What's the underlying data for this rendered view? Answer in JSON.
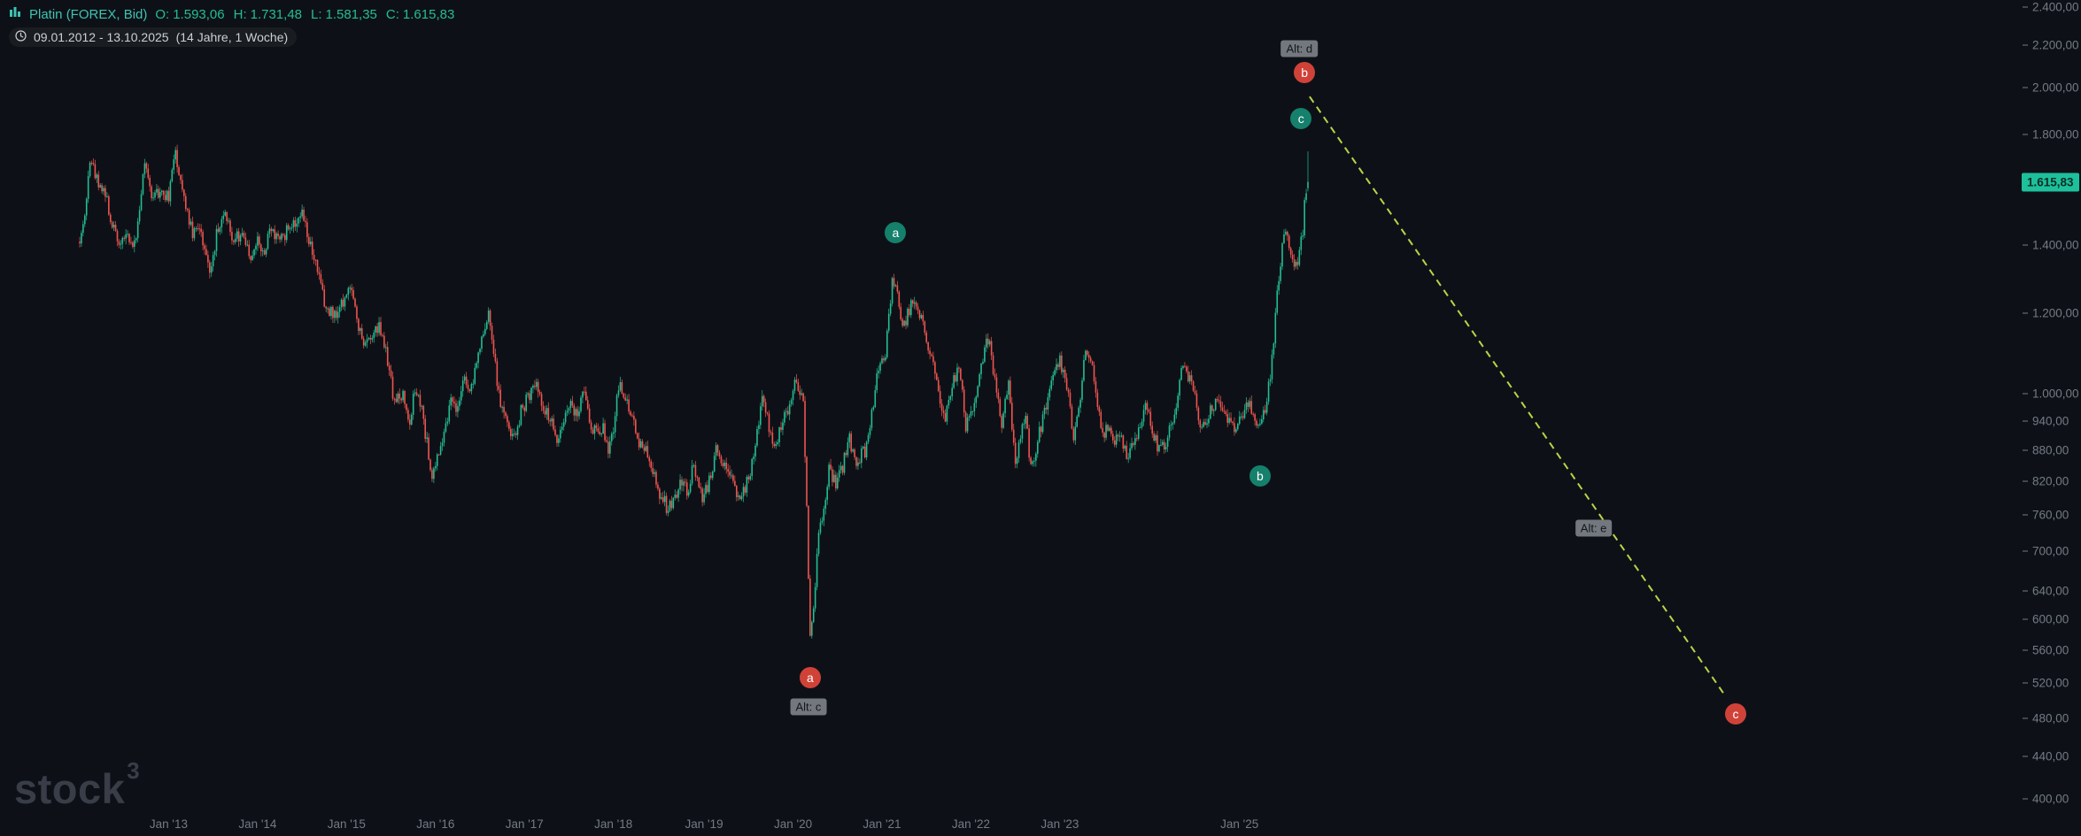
{
  "legend": {
    "instrument_label": "Platin (FOREX, Bid)",
    "ohlc": [
      {
        "k": "O:",
        "v": "1.593,06"
      },
      {
        "k": "H:",
        "v": "1.731,48"
      },
      {
        "k": "L:",
        "v": "1.581,35"
      },
      {
        "k": "C:",
        "v": "1.615,83"
      }
    ],
    "date_range": "09.01.2012 - 13.10.2025",
    "period_info": "(14 Jahre, 1 Woche)"
  },
  "watermark": {
    "text": "stock",
    "sup": "3"
  },
  "colors": {
    "background": "#0d1117",
    "up": "#24bd93",
    "down": "#f0544f",
    "axis_text": "#747a84",
    "projection_line": "#c6de4a",
    "marker_teal": "#15806b",
    "marker_red": "#d04238",
    "alt_label_bg": "#73777e",
    "price_tag_bg": "#1ec09c"
  },
  "markers": [
    {
      "type": "circle",
      "color": "teal",
      "text": "a",
      "week": 477,
      "price": 1440
    },
    {
      "type": "circle",
      "color": "red",
      "text": "b",
      "week": 716,
      "price": 2070
    },
    {
      "type": "circle",
      "color": "teal",
      "text": "c",
      "week": 714,
      "price": 1865
    },
    {
      "type": "label",
      "text": "Alt: d",
      "week": 713,
      "price": 2185
    },
    {
      "type": "circle",
      "color": "teal",
      "text": "b",
      "week": 690,
      "price": 830
    },
    {
      "type": "circle",
      "color": "red",
      "text": "a",
      "week": 427,
      "price": 526
    },
    {
      "type": "label",
      "text": "Alt: c",
      "week": 426,
      "price": 493
    },
    {
      "type": "label",
      "text": "Alt: e",
      "week": 885,
      "price": 738
    },
    {
      "type": "circle",
      "color": "red",
      "text": "c",
      "week": 968,
      "price": 485
    }
  ],
  "projection_line": {
    "from": {
      "week": 719,
      "price": 1960
    },
    "to": {
      "week": 962,
      "price": 505
    }
  },
  "chart_data": {
    "type": "candlestick",
    "instrument": "Platin (FOREX, Bid)",
    "timeframe_label": "1 Woche",
    "range_label": "09.01.2012 - 13.10.2025",
    "duration_label": "14 Jahre, 1 Woche",
    "scale": "logarithmic",
    "weeks_total": 719,
    "last_candle": {
      "open": 1593.06,
      "high": 1731.48,
      "low": 1581.35,
      "close": 1615.83
    },
    "current_price": 1615.83,
    "price_axis": {
      "ticks": [
        {
          "text": "2.400,00",
          "price": 2400
        },
        {
          "text": "2.200,00",
          "price": 2200
        },
        {
          "text": "2.000,00",
          "price": 2000
        },
        {
          "text": "1.800,00",
          "price": 1800
        },
        {
          "text": "1.400,00",
          "price": 1400
        },
        {
          "text": "1.200,00",
          "price": 1200
        },
        {
          "text": "1.000,00",
          "price": 1000
        },
        {
          "text": "940,00",
          "price": 940
        },
        {
          "text": "880,00",
          "price": 880
        },
        {
          "text": "820,00",
          "price": 820
        },
        {
          "text": "760,00",
          "price": 760
        },
        {
          "text": "700,00",
          "price": 700
        },
        {
          "text": "640,00",
          "price": 640
        },
        {
          "text": "600,00",
          "price": 600
        },
        {
          "text": "560,00",
          "price": 560
        },
        {
          "text": "520,00",
          "price": 520
        },
        {
          "text": "480,00",
          "price": 480
        },
        {
          "text": "440,00",
          "price": 440
        },
        {
          "text": "400,00",
          "price": 400
        }
      ],
      "current_tag": {
        "text": "1.615,83",
        "price": 1615.83
      }
    },
    "time_axis": {
      "ticks": [
        {
          "text": "Jan '13",
          "week": 52
        },
        {
          "text": "Jan '14",
          "week": 104
        },
        {
          "text": "Jan '15",
          "week": 156
        },
        {
          "text": "Jan '16",
          "week": 208
        },
        {
          "text": "Jan '17",
          "week": 260
        },
        {
          "text": "Jan '18",
          "week": 312
        },
        {
          "text": "Jan '19",
          "week": 365
        },
        {
          "text": "Jan '20",
          "week": 417
        },
        {
          "text": "Jan '21",
          "week": 469
        },
        {
          "text": "Jan '22",
          "week": 521
        },
        {
          "text": "Jan '23",
          "week": 573
        },
        {
          "text": "Jan '25",
          "week": 678
        }
      ]
    },
    "anchors": [
      [
        0,
        1420
      ],
      [
        3,
        1490
      ],
      [
        6,
        1710
      ],
      [
        10,
        1630
      ],
      [
        14,
        1590
      ],
      [
        19,
        1470
      ],
      [
        24,
        1400
      ],
      [
        28,
        1430
      ],
      [
        31,
        1390
      ],
      [
        34,
        1470
      ],
      [
        38,
        1690
      ],
      [
        43,
        1550
      ],
      [
        47,
        1590
      ],
      [
        52,
        1560
      ],
      [
        56,
        1730
      ],
      [
        60,
        1590
      ],
      [
        66,
        1430
      ],
      [
        70,
        1460
      ],
      [
        76,
        1320
      ],
      [
        80,
        1430
      ],
      [
        85,
        1520
      ],
      [
        90,
        1410
      ],
      [
        95,
        1440
      ],
      [
        99,
        1360
      ],
      [
        104,
        1410
      ],
      [
        108,
        1380
      ],
      [
        112,
        1450
      ],
      [
        118,
        1420
      ],
      [
        124,
        1470
      ],
      [
        130,
        1510
      ],
      [
        136,
        1380
      ],
      [
        143,
        1230
      ],
      [
        148,
        1200
      ],
      [
        152,
        1210
      ],
      [
        158,
        1280
      ],
      [
        162,
        1180
      ],
      [
        166,
        1110
      ],
      [
        171,
        1140
      ],
      [
        175,
        1160
      ],
      [
        180,
        1080
      ],
      [
        184,
        980
      ],
      [
        189,
        1000
      ],
      [
        193,
        940
      ],
      [
        196,
        1010
      ],
      [
        200,
        960
      ],
      [
        206,
        830
      ],
      [
        210,
        880
      ],
      [
        214,
        940
      ],
      [
        217,
        980
      ],
      [
        221,
        960
      ],
      [
        224,
        1040
      ],
      [
        228,
        1000
      ],
      [
        232,
        1080
      ],
      [
        239,
        1190
      ],
      [
        243,
        1060
      ],
      [
        246,
        970
      ],
      [
        250,
        930
      ],
      [
        254,
        900
      ],
      [
        258,
        960
      ],
      [
        263,
        1000
      ],
      [
        267,
        1030
      ],
      [
        271,
        960
      ],
      [
        275,
        950
      ],
      [
        278,
        900
      ],
      [
        282,
        930
      ],
      [
        286,
        980
      ],
      [
        291,
        950
      ],
      [
        295,
        1010
      ],
      [
        299,
        930
      ],
      [
        303,
        910
      ],
      [
        306,
        930
      ],
      [
        309,
        880
      ],
      [
        312,
        930
      ],
      [
        315,
        1020
      ],
      [
        319,
        990
      ],
      [
        323,
        960
      ],
      [
        327,
        900
      ],
      [
        331,
        880
      ],
      [
        335,
        840
      ],
      [
        339,
        800
      ],
      [
        344,
        770
      ],
      [
        348,
        790
      ],
      [
        351,
        830
      ],
      [
        355,
        800
      ],
      [
        359,
        850
      ],
      [
        364,
        790
      ],
      [
        368,
        820
      ],
      [
        372,
        880
      ],
      [
        376,
        850
      ],
      [
        380,
        830
      ],
      [
        385,
        790
      ],
      [
        389,
        810
      ],
      [
        393,
        850
      ],
      [
        397,
        930
      ],
      [
        399,
        990
      ],
      [
        402,
        950
      ],
      [
        405,
        880
      ],
      [
        407,
        890
      ],
      [
        410,
        930
      ],
      [
        414,
        970
      ],
      [
        418,
        1030
      ],
      [
        421,
        1010
      ],
      [
        423,
        980
      ],
      [
        425,
        770
      ],
      [
        427,
        580
      ],
      [
        429,
        620
      ],
      [
        432,
        730
      ],
      [
        435,
        770
      ],
      [
        438,
        840
      ],
      [
        442,
        820
      ],
      [
        446,
        850
      ],
      [
        450,
        900
      ],
      [
        454,
        860
      ],
      [
        459,
        880
      ],
      [
        463,
        960
      ],
      [
        467,
        1060
      ],
      [
        471,
        1100
      ],
      [
        475,
        1290
      ],
      [
        477,
        1270
      ],
      [
        481,
        1160
      ],
      [
        484,
        1200
      ],
      [
        488,
        1250
      ],
      [
        492,
        1180
      ],
      [
        496,
        1100
      ],
      [
        500,
        1060
      ],
      [
        503,
        990
      ],
      [
        506,
        950
      ],
      [
        510,
        1020
      ],
      [
        514,
        1070
      ],
      [
        518,
        930
      ],
      [
        522,
        960
      ],
      [
        526,
        1030
      ],
      [
        530,
        1150
      ],
      [
        533,
        1100
      ],
      [
        536,
        990
      ],
      [
        539,
        940
      ],
      [
        543,
        1020
      ],
      [
        547,
        850
      ],
      [
        550,
        900
      ],
      [
        553,
        960
      ],
      [
        556,
        840
      ],
      [
        560,
        900
      ],
      [
        564,
        960
      ],
      [
        568,
        1030
      ],
      [
        573,
        1080
      ],
      [
        577,
        1020
      ],
      [
        581,
        910
      ],
      [
        585,
        990
      ],
      [
        588,
        1110
      ],
      [
        592,
        1060
      ],
      [
        595,
        980
      ],
      [
        598,
        910
      ],
      [
        601,
        930
      ],
      [
        605,
        900
      ],
      [
        609,
        910
      ],
      [
        612,
        870
      ],
      [
        616,
        890
      ],
      [
        620,
        940
      ],
      [
        624,
        980
      ],
      [
        627,
        920
      ],
      [
        631,
        880
      ],
      [
        635,
        900
      ],
      [
        640,
        950
      ],
      [
        645,
        1070
      ],
      [
        649,
        1030
      ],
      [
        652,
        990
      ],
      [
        656,
        920
      ],
      [
        660,
        960
      ],
      [
        666,
        990
      ],
      [
        670,
        950
      ],
      [
        675,
        920
      ],
      [
        679,
        950
      ],
      [
        683,
        980
      ],
      [
        687,
        950
      ],
      [
        691,
        930
      ],
      [
        694,
        990
      ],
      [
        697,
        1080
      ],
      [
        700,
        1250
      ],
      [
        703,
        1400
      ],
      [
        705,
        1430
      ],
      [
        707,
        1410
      ],
      [
        709,
        1350
      ],
      [
        711,
        1330
      ],
      [
        713,
        1380
      ],
      [
        715,
        1440
      ],
      [
        716,
        1560
      ],
      [
        718,
        1610
      ]
    ]
  }
}
